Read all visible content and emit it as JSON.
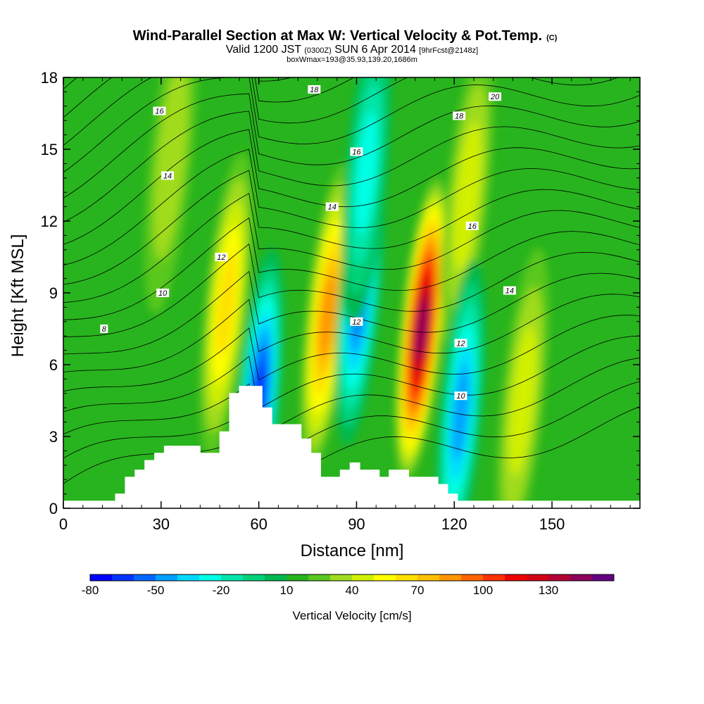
{
  "chart_data": {
    "type": "heatmap",
    "title": "Wind-Parallel Section at Max W: Vertical Velocity & Pot.Temp.",
    "title_mark": "(C)",
    "subtitle_parts": [
      "Valid 1200 JST",
      "(0300Z)",
      "SUN 6 Apr 2014",
      "[9hrFcst@2148z]"
    ],
    "subtitle2": "boxWmax=193@35.93,139.20,1686m",
    "xlabel": "Distance [nm]",
    "ylabel": "Height [Kft MSL]",
    "xlim": [
      0,
      177
    ],
    "ylim": [
      0,
      18
    ],
    "x_ticks": [
      0,
      30,
      60,
      90,
      120,
      150
    ],
    "y_ticks": [
      0,
      3,
      6,
      9,
      12,
      15,
      18
    ],
    "grid": false,
    "colorbar": {
      "label": "Vertical Velocity [cm/s]",
      "orientation": "horizontal",
      "position": "bottom",
      "levels": [
        -80,
        -70,
        -60,
        -50,
        -40,
        -30,
        -20,
        -10,
        0,
        10,
        20,
        30,
        40,
        50,
        60,
        70,
        80,
        90,
        100,
        110,
        120,
        130,
        140,
        150
      ],
      "tick_labels": [
        -80,
        -50,
        -20,
        10,
        40,
        70,
        100,
        130
      ],
      "colors": [
        "#0000ff",
        "#0033ff",
        "#0066ff",
        "#00a0ff",
        "#00d8ff",
        "#00ffe6",
        "#00e6aa",
        "#00d27a",
        "#00b850",
        "#28b41e",
        "#5ac81e",
        "#a0dc1e",
        "#d2f000",
        "#ffff00",
        "#ffe000",
        "#ffc000",
        "#ff9600",
        "#ff6400",
        "#ff3200",
        "#ee0000",
        "#d20014",
        "#b40032",
        "#8c005a",
        "#640082"
      ]
    },
    "updrafts": [
      {
        "x": 50,
        "z": 8.5,
        "peak": 62
      },
      {
        "x": 81,
        "z": 8.0,
        "peak": 88
      },
      {
        "x": 110,
        "z": 7.5,
        "peak": 148
      },
      {
        "x": 33,
        "z": 14.5,
        "peak": 36
      },
      {
        "x": 124,
        "z": 13.0,
        "peak": 40
      },
      {
        "x": 141,
        "z": 4.5,
        "peak": 45
      }
    ],
    "downdrafts": [
      {
        "x": 91,
        "z": 9.0,
        "peak": -60
      },
      {
        "x": 60,
        "z": 4.5,
        "peak": -70
      },
      {
        "x": 122,
        "z": 4.0,
        "peak": -55
      },
      {
        "x": 93,
        "z": 14.0,
        "peak": -35
      }
    ],
    "terrain": {
      "x": [
        0,
        16,
        16,
        19,
        19,
        22,
        22,
        25,
        25,
        28,
        28,
        31,
        31,
        35,
        35,
        42,
        42,
        48,
        48,
        51,
        51,
        54,
        54,
        57,
        57,
        61,
        61,
        64,
        64,
        73,
        73,
        76,
        76,
        79,
        79,
        82,
        82,
        85,
        85,
        88,
        88,
        91,
        91,
        97,
        97,
        100,
        100,
        103,
        103,
        106,
        106,
        115,
        115,
        118,
        118,
        121,
        121,
        130,
        130,
        177
      ],
      "z": [
        0.3,
        0.3,
        0.6,
        0.6,
        1.3,
        1.3,
        1.6,
        1.6,
        2.0,
        2.0,
        2.3,
        2.3,
        2.6,
        2.6,
        2.6,
        2.6,
        2.3,
        2.3,
        3.2,
        3.2,
        4.8,
        4.8,
        5.1,
        5.1,
        5.1,
        5.1,
        4.2,
        4.2,
        3.5,
        3.5,
        2.9,
        2.9,
        2.3,
        2.3,
        1.3,
        1.3,
        1.3,
        1.3,
        1.6,
        1.6,
        1.9,
        1.9,
        1.6,
        1.6,
        1.3,
        1.3,
        1.6,
        1.6,
        1.6,
        1.6,
        1.3,
        1.3,
        1.0,
        1.0,
        0.6,
        0.6,
        0.3,
        0.3,
        0.3,
        0.3
      ]
    },
    "contour_labels": [
      {
        "text": "8",
        "x": 12.5,
        "z": 7.5
      },
      {
        "text": "10",
        "x": 30.5,
        "z": 9.0
      },
      {
        "text": "12",
        "x": 48.5,
        "z": 10.5
      },
      {
        "text": "14",
        "x": 32,
        "z": 13.9
      },
      {
        "text": "16",
        "x": 29.5,
        "z": 16.6
      },
      {
        "text": "18",
        "x": 77,
        "z": 17.5
      },
      {
        "text": "16",
        "x": 90,
        "z": 14.9
      },
      {
        "text": "14",
        "x": 82.5,
        "z": 12.6
      },
      {
        "text": "12",
        "x": 90,
        "z": 7.8
      },
      {
        "text": "20",
        "x": 132.5,
        "z": 17.2
      },
      {
        "text": "18",
        "x": 121.5,
        "z": 16.4
      },
      {
        "text": "16",
        "x": 125.5,
        "z": 11.8
      },
      {
        "text": "14",
        "x": 137,
        "z": 9.1
      },
      {
        "text": "12",
        "x": 122,
        "z": 6.9
      },
      {
        "text": "10",
        "x": 122,
        "z": 4.7
      }
    ]
  }
}
